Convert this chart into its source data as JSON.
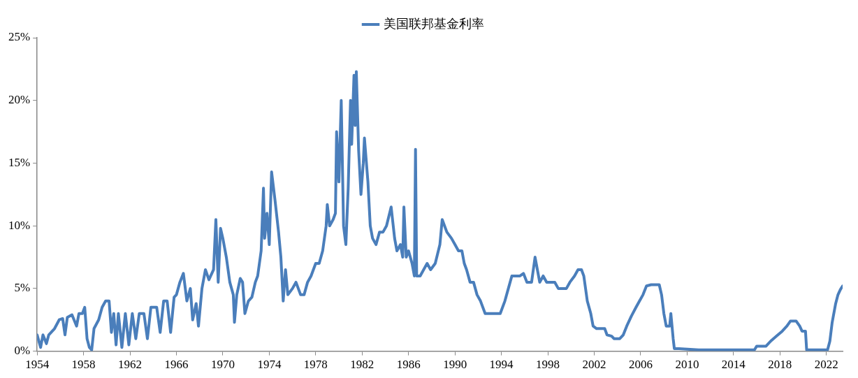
{
  "chart_data": {
    "type": "line",
    "x": [
      1954.0,
      1954.3,
      1954.5,
      1954.8,
      1955.0,
      1955.5,
      1955.9,
      1956.2,
      1956.4,
      1956.6,
      1957.0,
      1957.4,
      1957.6,
      1957.9,
      1958.1,
      1958.3,
      1958.5,
      1958.7,
      1958.9,
      1959.3,
      1959.6,
      1959.9,
      1960.2,
      1960.4,
      1960.6,
      1960.8,
      1961.0,
      1961.3,
      1961.6,
      1961.9,
      1962.2,
      1962.5,
      1962.8,
      1963.2,
      1963.5,
      1963.8,
      1964.3,
      1964.6,
      1964.9,
      1965.2,
      1965.5,
      1965.8,
      1966.0,
      1966.3,
      1966.6,
      1966.9,
      1967.2,
      1967.4,
      1967.7,
      1967.9,
      1968.2,
      1968.5,
      1968.8,
      1969.2,
      1969.4,
      1969.6,
      1969.8,
      1970.0,
      1970.3,
      1970.6,
      1970.9,
      1971.0,
      1971.2,
      1971.5,
      1971.7,
      1971.9,
      1972.2,
      1972.5,
      1972.8,
      1973.0,
      1973.3,
      1973.5,
      1973.6,
      1973.8,
      1974.0,
      1974.2,
      1974.5,
      1974.8,
      1975.0,
      1975.2,
      1975.4,
      1975.6,
      1976.0,
      1976.3,
      1976.7,
      1977.0,
      1977.3,
      1977.6,
      1978.0,
      1978.3,
      1978.6,
      1978.9,
      1979.0,
      1979.2,
      1979.5,
      1979.7,
      1979.8,
      1980.0,
      1980.2,
      1980.4,
      1980.6,
      1980.8,
      1981.0,
      1981.1,
      1981.3,
      1981.4,
      1981.5,
      1981.7,
      1981.9,
      1982.1,
      1982.2,
      1982.5,
      1982.7,
      1982.9,
      1983.2,
      1983.5,
      1983.8,
      1984.1,
      1984.5,
      1984.8,
      1985.0,
      1985.3,
      1985.5,
      1985.6,
      1985.8,
      1986.0,
      1986.3,
      1986.5,
      1986.6,
      1986.7,
      1987.0,
      1987.3,
      1987.6,
      1987.9,
      1988.3,
      1988.7,
      1988.9,
      1989.3,
      1989.7,
      1990.0,
      1990.3,
      1990.6,
      1990.8,
      1991.0,
      1991.3,
      1991.6,
      1991.9,
      1992.2,
      1992.6,
      1992.9,
      1993.2,
      1993.6,
      1993.9,
      1994.3,
      1994.6,
      1994.9,
      1995.2,
      1995.6,
      1995.9,
      1996.2,
      1996.6,
      1996.9,
      1997.3,
      1997.6,
      1997.9,
      1998.3,
      1998.6,
      1998.9,
      1999.2,
      1999.6,
      1999.9,
      2000.3,
      2000.6,
      2000.9,
      2001.1,
      2001.4,
      2001.7,
      2001.9,
      2002.2,
      2002.6,
      2002.9,
      2003.1,
      2003.5,
      2003.7,
      2004.2,
      2004.5,
      2004.8,
      2005.2,
      2005.6,
      2005.9,
      2006.2,
      2006.5,
      2006.9,
      2007.3,
      2007.6,
      2007.8,
      2008.0,
      2008.2,
      2008.5,
      2008.6,
      2008.8,
      2008.9,
      2009.3,
      2011.0,
      2013.0,
      2015.8,
      2016.0,
      2016.8,
      2017.2,
      2017.7,
      2018.2,
      2018.6,
      2018.9,
      2019.4,
      2019.7,
      2019.9,
      2020.2,
      2020.3,
      2021.5,
      2022.1,
      2022.3,
      2022.5,
      2022.8,
      2023.0,
      2023.2,
      2023.4
    ],
    "series": [
      {
        "name": "美国联邦基金利率",
        "color": "#4a7ebb",
        "values": [
          1.3,
          0.3,
          1.3,
          0.6,
          1.3,
          1.8,
          2.5,
          2.6,
          1.3,
          2.7,
          2.9,
          2.0,
          3.0,
          3.0,
          3.5,
          1.0,
          0.3,
          0.1,
          1.8,
          2.5,
          3.5,
          4.0,
          4.0,
          1.5,
          3.0,
          0.5,
          3.0,
          0.3,
          3.0,
          0.5,
          3.0,
          1.0,
          3.0,
          3.0,
          1.0,
          3.5,
          3.5,
          1.5,
          4.0,
          4.0,
          1.5,
          4.3,
          4.5,
          5.5,
          6.2,
          4.0,
          5.0,
          2.5,
          3.8,
          2.0,
          5.0,
          6.5,
          5.7,
          6.5,
          10.5,
          5.5,
          9.8,
          9.0,
          7.5,
          5.5,
          4.5,
          2.3,
          4.5,
          5.8,
          5.5,
          3.0,
          4.0,
          4.3,
          5.5,
          6.0,
          8.0,
          13.0,
          9.0,
          11.0,
          8.5,
          14.3,
          12.0,
          9.5,
          7.5,
          4.0,
          6.5,
          4.5,
          5.0,
          5.5,
          4.5,
          4.5,
          5.5,
          6.0,
          7.0,
          7.0,
          8.0,
          10.0,
          11.7,
          10.0,
          10.5,
          11.0,
          17.5,
          13.5,
          20.0,
          10.0,
          8.5,
          13.0,
          20.0,
          16.5,
          22.0,
          18.0,
          22.3,
          16.0,
          12.5,
          15.0,
          17.0,
          13.5,
          10.0,
          9.0,
          8.5,
          9.5,
          9.5,
          10.0,
          11.5,
          9.0,
          8.0,
          8.5,
          7.5,
          11.5,
          7.5,
          8.0,
          7.0,
          6.0,
          16.1,
          6.0,
          6.0,
          6.5,
          7.0,
          6.5,
          7.0,
          8.5,
          10.5,
          9.5,
          9.0,
          8.5,
          8.0,
          8.0,
          7.0,
          6.5,
          5.5,
          5.5,
          4.5,
          4.0,
          3.0,
          3.0,
          3.0,
          3.0,
          3.0,
          4.0,
          5.0,
          6.0,
          6.0,
          6.0,
          6.2,
          5.5,
          5.5,
          7.5,
          5.5,
          6.0,
          5.5,
          5.5,
          5.5,
          5.0,
          5.0,
          5.0,
          5.5,
          6.0,
          6.5,
          6.5,
          6.0,
          4.0,
          3.0,
          2.0,
          1.8,
          1.8,
          1.8,
          1.3,
          1.2,
          1.0,
          1.0,
          1.3,
          2.0,
          2.8,
          3.5,
          4.0,
          4.5,
          5.2,
          5.3,
          5.3,
          5.3,
          4.5,
          3.0,
          2.0,
          2.0,
          3.0,
          1.0,
          0.2,
          0.2,
          0.1,
          0.1,
          0.1,
          0.4,
          0.4,
          0.8,
          1.2,
          1.6,
          2.0,
          2.4,
          2.4,
          2.0,
          1.6,
          1.6,
          0.1,
          0.1,
          0.1,
          0.8,
          2.3,
          3.8,
          4.5,
          4.9,
          5.2
        ]
      }
    ],
    "xlim": [
      1954,
      2023.4
    ],
    "xticks": [
      1954,
      1958,
      1962,
      1966,
      1970,
      1974,
      1978,
      1982,
      1986,
      1990,
      1994,
      1998,
      2002,
      2006,
      2010,
      2014,
      2018,
      2022
    ],
    "ylim": [
      0,
      25
    ],
    "yticks": [
      {
        "value": 0,
        "label": "0%"
      },
      {
        "value": 5,
        "label": "5%"
      },
      {
        "value": 10,
        "label": "10%"
      },
      {
        "value": 15,
        "label": "15%"
      },
      {
        "value": 20,
        "label": "20%"
      },
      {
        "value": 25,
        "label": "25%"
      }
    ],
    "legend": "top",
    "grid": false,
    "marker": "none",
    "line_style": "solid"
  }
}
